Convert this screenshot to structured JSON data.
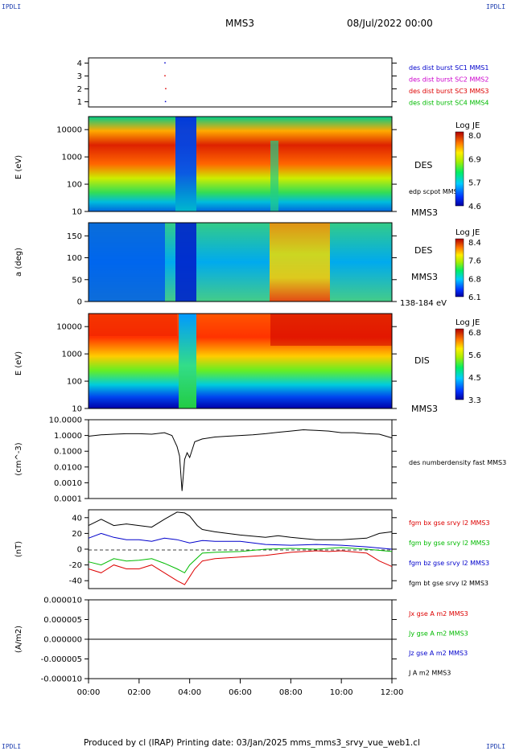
{
  "header": {
    "corner_tl": "IPDLI",
    "corner_tr": "IPDLI",
    "spacecraft": "MMS3",
    "datetime": "08/Jul/2022 00:00"
  },
  "footer": {
    "text": "Produced by cl (IRAP)   Printing date: 03/Jan/2025   mms_mms3_srvy_vue_web1.cl",
    "corner_bl": "IPDLI",
    "corner_br": "IPDLI"
  },
  "colors": {
    "mms1": "#0000cc",
    "mms2": "#cc00cc",
    "mms3": "#dd0000",
    "mms4": "#00bb00",
    "bx": "#dd0000",
    "by": "#00bb00",
    "bz": "#0000cc",
    "bt": "#000000"
  },
  "chart_data": [
    {
      "type": "scatter",
      "panel": "burst-availability",
      "x_unit": "hours UT",
      "yticks": [
        "1",
        "2",
        "3",
        "4"
      ],
      "ylim": [
        0.6,
        4.4
      ],
      "legend": [
        "des dist burst SC1 MMS1",
        "des dist burst SC2 MMS2",
        "des dist burst SC3 MMS3",
        "des dist burst SC4 MMS4"
      ],
      "points": [
        {
          "x": 3.0,
          "y": 4,
          "sc": "mms1"
        },
        {
          "x": 3.0,
          "y": 3,
          "sc": "mms3"
        },
        {
          "x": 3.03,
          "y": 2,
          "sc": "mms3"
        },
        {
          "x": 3.02,
          "y": 1,
          "sc": "mms1"
        }
      ]
    },
    {
      "type": "heatmap",
      "panel": "des-energy",
      "ylabel": "E (eV)",
      "yscale": "log",
      "ylim": [
        10,
        30000
      ],
      "yticks": [
        "10000",
        "1000",
        "100",
        "10"
      ],
      "colorbar": {
        "label": "Log JE",
        "ticks": [
          "8.0",
          "6.9",
          "5.7",
          "4.6"
        ],
        "min": 4.6,
        "max": 8.0
      },
      "side_labels": [
        "DES",
        "MMS3"
      ],
      "overlay_label": "edp scpot MMS3",
      "peak_energy_profile": [
        {
          "x": 0.0,
          "level": 0.9
        },
        {
          "x": 3.0,
          "level": 0.88
        },
        {
          "x": 3.2,
          "level": 0.5
        },
        {
          "x": 3.6,
          "level": 0.15
        },
        {
          "x": 4.2,
          "level": 0.15
        },
        {
          "x": 4.4,
          "level": 0.6
        },
        {
          "x": 7.2,
          "level": 0.72
        },
        {
          "x": 7.6,
          "level": 0.85
        },
        {
          "x": 12.0,
          "level": 0.82
        }
      ]
    },
    {
      "type": "heatmap",
      "panel": "des-pitch-angle",
      "ylabel": "a (deg)",
      "ylim": [
        0,
        180
      ],
      "yticks": [
        "150",
        "100",
        "50",
        "0"
      ],
      "colorbar": {
        "label": "Log JE",
        "ticks": [
          "8.4",
          "7.6",
          "6.8",
          "6.1"
        ],
        "min": 6.1,
        "max": 8.4
      },
      "side_labels": [
        "DES",
        "MMS3"
      ],
      "energy_band": "138-184 eV"
    },
    {
      "type": "heatmap",
      "panel": "dis-energy",
      "ylabel": "E (eV)",
      "yscale": "log",
      "ylim": [
        10,
        30000
      ],
      "yticks": [
        "10000",
        "1000",
        "100",
        "10"
      ],
      "colorbar": {
        "label": "Log JE",
        "ticks": [
          "6.8",
          "5.6",
          "4.5",
          "3.3"
        ],
        "min": 3.3,
        "max": 6.8
      },
      "side_labels": [
        "DIS",
        "MMS3"
      ]
    },
    {
      "type": "line",
      "panel": "density",
      "ylabel": "(cm^-3)",
      "yscale": "log",
      "ylim": [
        0.0001,
        10
      ],
      "yticks": [
        "10.0000",
        "1.0000",
        "0.1000",
        "0.0100",
        "0.0010",
        "0.0001"
      ],
      "series": [
        {
          "name": "des numberdensity fast MMS3",
          "color": "#000000",
          "x": [
            0.0,
            0.5,
            1.0,
            1.5,
            2.0,
            2.5,
            3.0,
            3.3,
            3.5,
            3.6,
            3.7,
            3.8,
            3.9,
            4.0,
            4.2,
            4.5,
            5.0,
            5.5,
            6.0,
            6.5,
            7.0,
            7.5,
            8.0,
            8.5,
            9.0,
            9.5,
            10.0,
            10.5,
            11.0,
            11.5,
            12.0
          ],
          "y": [
            0.9,
            1.1,
            1.2,
            1.3,
            1.3,
            1.2,
            1.5,
            1.0,
            0.2,
            0.05,
            0.0003,
            0.03,
            0.08,
            0.04,
            0.4,
            0.6,
            0.8,
            0.9,
            1.0,
            1.1,
            1.3,
            1.6,
            1.9,
            2.3,
            2.1,
            1.9,
            1.5,
            1.5,
            1.3,
            1.2,
            0.7
          ]
        }
      ]
    },
    {
      "type": "line",
      "panel": "magnetic-field",
      "ylabel": "(nT)",
      "ylim": [
        -50,
        50
      ],
      "yticks": [
        "40",
        "20",
        "0",
        "-20",
        "-40"
      ],
      "series": [
        {
          "name": "fgm bx gse srvy l2 MMS3",
          "color": "#dd0000",
          "x": [
            0,
            0.5,
            1,
            1.5,
            2,
            2.5,
            3,
            3.5,
            3.8,
            4.0,
            4.2,
            4.5,
            5,
            6,
            7,
            8,
            9,
            9.5,
            10,
            11,
            11.5,
            12
          ],
          "y": [
            -25,
            -30,
            -20,
            -25,
            -25,
            -20,
            -30,
            -40,
            -45,
            -35,
            -25,
            -15,
            -12,
            -10,
            -8,
            -4,
            -2,
            -3,
            -2,
            -5,
            -15,
            -22
          ]
        },
        {
          "name": "fgm by gse srvy l2 MMS3",
          "color": "#00bb00",
          "x": [
            0,
            0.5,
            1,
            1.5,
            2,
            2.5,
            3,
            3.5,
            3.8,
            4.0,
            4.5,
            5,
            6,
            7,
            8,
            9,
            10,
            11,
            12
          ],
          "y": [
            -16,
            -20,
            -12,
            -15,
            -14,
            -12,
            -18,
            -25,
            -30,
            -20,
            -5,
            -4,
            -3,
            0,
            1,
            0,
            2,
            0,
            -3
          ]
        },
        {
          "name": "fgm bz gse srvy l2 MMS3",
          "color": "#0000cc",
          "x": [
            0,
            0.5,
            1,
            1.5,
            2,
            2.5,
            3,
            3.5,
            4,
            4.5,
            5,
            6,
            7,
            8,
            9,
            10,
            11,
            12
          ],
          "y": [
            14,
            20,
            15,
            12,
            12,
            10,
            14,
            12,
            8,
            11,
            10,
            10,
            6,
            5,
            6,
            5,
            3,
            0
          ]
        },
        {
          "name": "fgm bt gse srvy l2 MMS3",
          "color": "#000000",
          "x": [
            0,
            0.5,
            1,
            1.5,
            2,
            2.5,
            3,
            3.5,
            3.8,
            4.0,
            4.3,
            4.5,
            5,
            5.5,
            6,
            7,
            7.5,
            8,
            9,
            10,
            11,
            11.5,
            12
          ],
          "y": [
            30,
            38,
            30,
            32,
            30,
            28,
            38,
            47,
            46,
            42,
            30,
            25,
            22,
            20,
            18,
            15,
            17,
            15,
            12,
            12,
            14,
            20,
            22
          ]
        }
      ]
    },
    {
      "type": "line",
      "panel": "current-density",
      "ylabel": "(A/m2)",
      "ylim": [
        -1e-05,
        1e-05
      ],
      "yticks": [
        "0.000010",
        "0.000005",
        "0.000000",
        "-0.000005",
        "-0.000010"
      ],
      "xlim": [
        0,
        12
      ],
      "xticks": [
        "00:00",
        "02:00",
        "04:00",
        "06:00",
        "08:00",
        "10:00",
        "12:00"
      ],
      "series": [
        {
          "name": "Jx gse A m2 MMS3",
          "color": "#dd0000"
        },
        {
          "name": "Jy gse A m2 MMS3",
          "color": "#00bb00"
        },
        {
          "name": "Jz gse A m2 MMS3",
          "color": "#0000cc"
        },
        {
          "name": "J A m2 MMS3",
          "color": "#000000",
          "x": [
            0,
            12
          ],
          "y": [
            0,
            0
          ]
        }
      ]
    }
  ]
}
